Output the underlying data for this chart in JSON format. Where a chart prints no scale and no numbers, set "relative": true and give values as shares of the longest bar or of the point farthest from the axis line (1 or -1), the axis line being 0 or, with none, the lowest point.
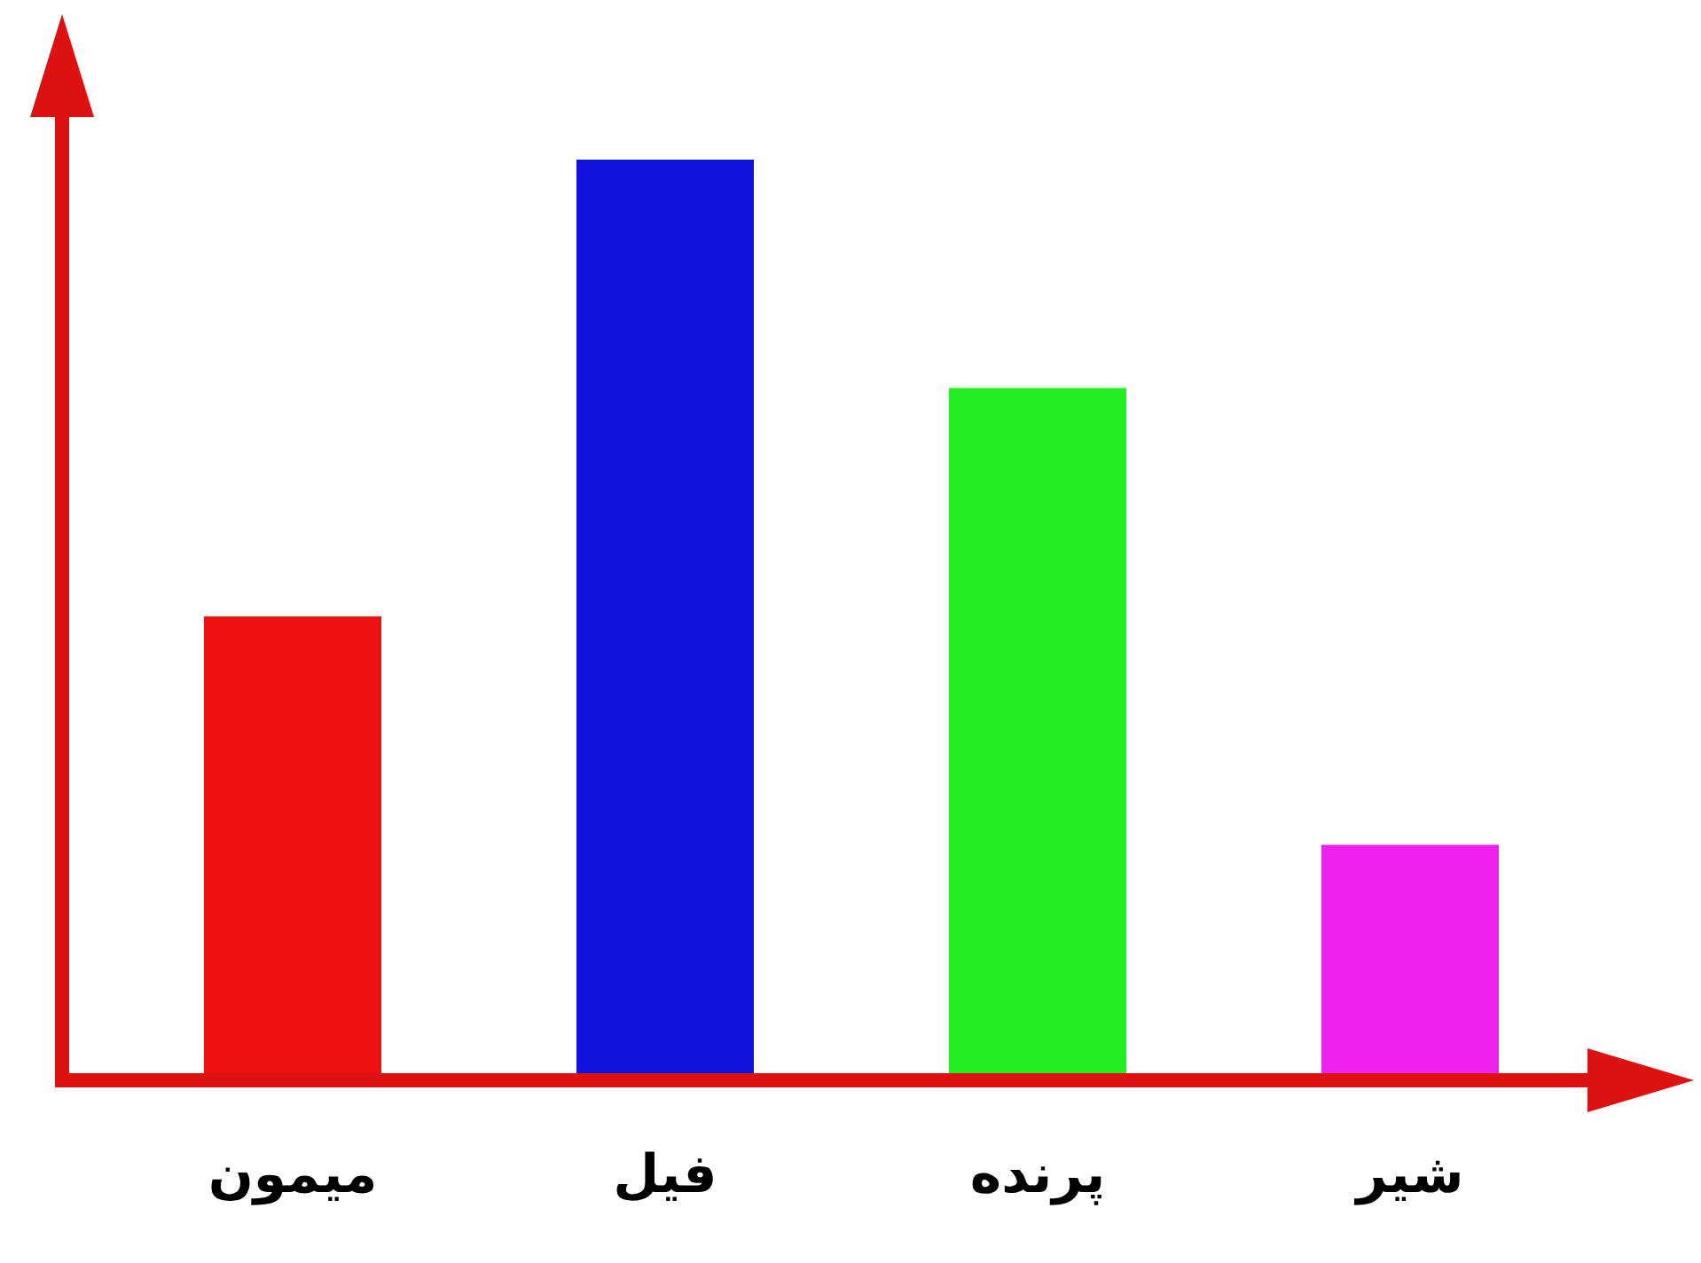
{
  "chart_data": {
    "type": "bar",
    "relative": true,
    "categories": [
      "میمون",
      "فیل",
      "پرنده",
      "شیر"
    ],
    "values": [
      0.5,
      1,
      0.75,
      0.25
    ],
    "colors": [
      "#ee1111",
      "#1111dd",
      "#22ee22",
      "#ee22ee"
    ]
  }
}
